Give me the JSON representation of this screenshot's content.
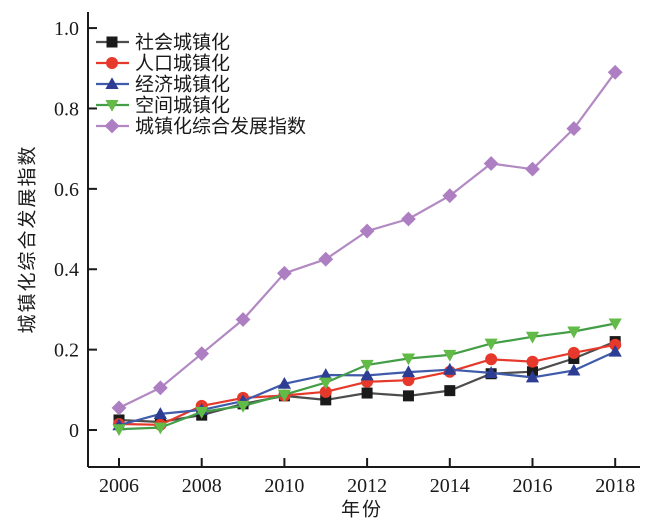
{
  "figure": {
    "background": "#ffffff",
    "axis_color": "#1a1a1a"
  },
  "chart_data": {
    "type": "line",
    "title": "",
    "xlabel": "年份",
    "ylabel": "城镇化综合发展指数",
    "x": [
      2006,
      2007,
      2008,
      2009,
      2010,
      2011,
      2012,
      2013,
      2014,
      2015,
      2016,
      2017,
      2018
    ],
    "xticks": [
      2006,
      2008,
      2010,
      2012,
      2014,
      2016,
      2018
    ],
    "yticks": [
      {
        "value": 0,
        "label": "0"
      },
      {
        "value": 0.2,
        "label": "0.2"
      },
      {
        "value": 0.4,
        "label": "0.4"
      },
      {
        "value": 0.6,
        "label": "0.6"
      },
      {
        "value": 0.8,
        "label": "0.8"
      },
      {
        "value": 1.0,
        "label": "1.0"
      }
    ],
    "xlim": [
      2005.25,
      2018.6
    ],
    "ylim": [
      -0.092,
      1.04
    ],
    "grid": false,
    "legend_position": "top-left",
    "series": [
      {
        "id": "social-urbanization",
        "label": "社会城镇化",
        "marker": "square",
        "color": "#1a1a1a",
        "line_color": "#4d4d4d",
        "values": [
          0.025,
          0.02,
          0.037,
          0.065,
          0.085,
          0.075,
          0.092,
          0.085,
          0.098,
          0.14,
          0.145,
          0.178,
          0.22
        ]
      },
      {
        "id": "population-urbanization",
        "label": "人口城镇化",
        "marker": "circle",
        "color": "#e6392b",
        "line_color": "#e6392b",
        "values": [
          0.015,
          0.013,
          0.06,
          0.08,
          0.086,
          0.095,
          0.12,
          0.124,
          0.145,
          0.176,
          0.17,
          0.192,
          0.212
        ]
      },
      {
        "id": "economic-urbanization",
        "label": "经济城镇化",
        "marker": "triangle-up",
        "color": "#2e3d94",
        "line_color": "#3f5ba9",
        "values": [
          0.012,
          0.04,
          0.05,
          0.072,
          0.115,
          0.137,
          0.136,
          0.144,
          0.15,
          0.142,
          0.131,
          0.148,
          0.195
        ]
      },
      {
        "id": "spatial-urbanization",
        "label": "空间城镇化",
        "marker": "triangle-down",
        "color": "#62bb46",
        "line_color": "#449e47",
        "values": [
          0.002,
          0.006,
          0.045,
          0.06,
          0.088,
          0.118,
          0.162,
          0.178,
          0.187,
          0.215,
          0.232,
          0.245,
          0.265
        ]
      },
      {
        "id": "composite-development-index",
        "label": "城镇化综合发展指数",
        "marker": "diamond",
        "color": "#ad7ec1",
        "line_color": "#b289c2",
        "values": [
          0.055,
          0.105,
          0.19,
          0.275,
          0.39,
          0.425,
          0.495,
          0.525,
          0.583,
          0.663,
          0.649,
          0.75,
          0.89
        ]
      }
    ]
  }
}
